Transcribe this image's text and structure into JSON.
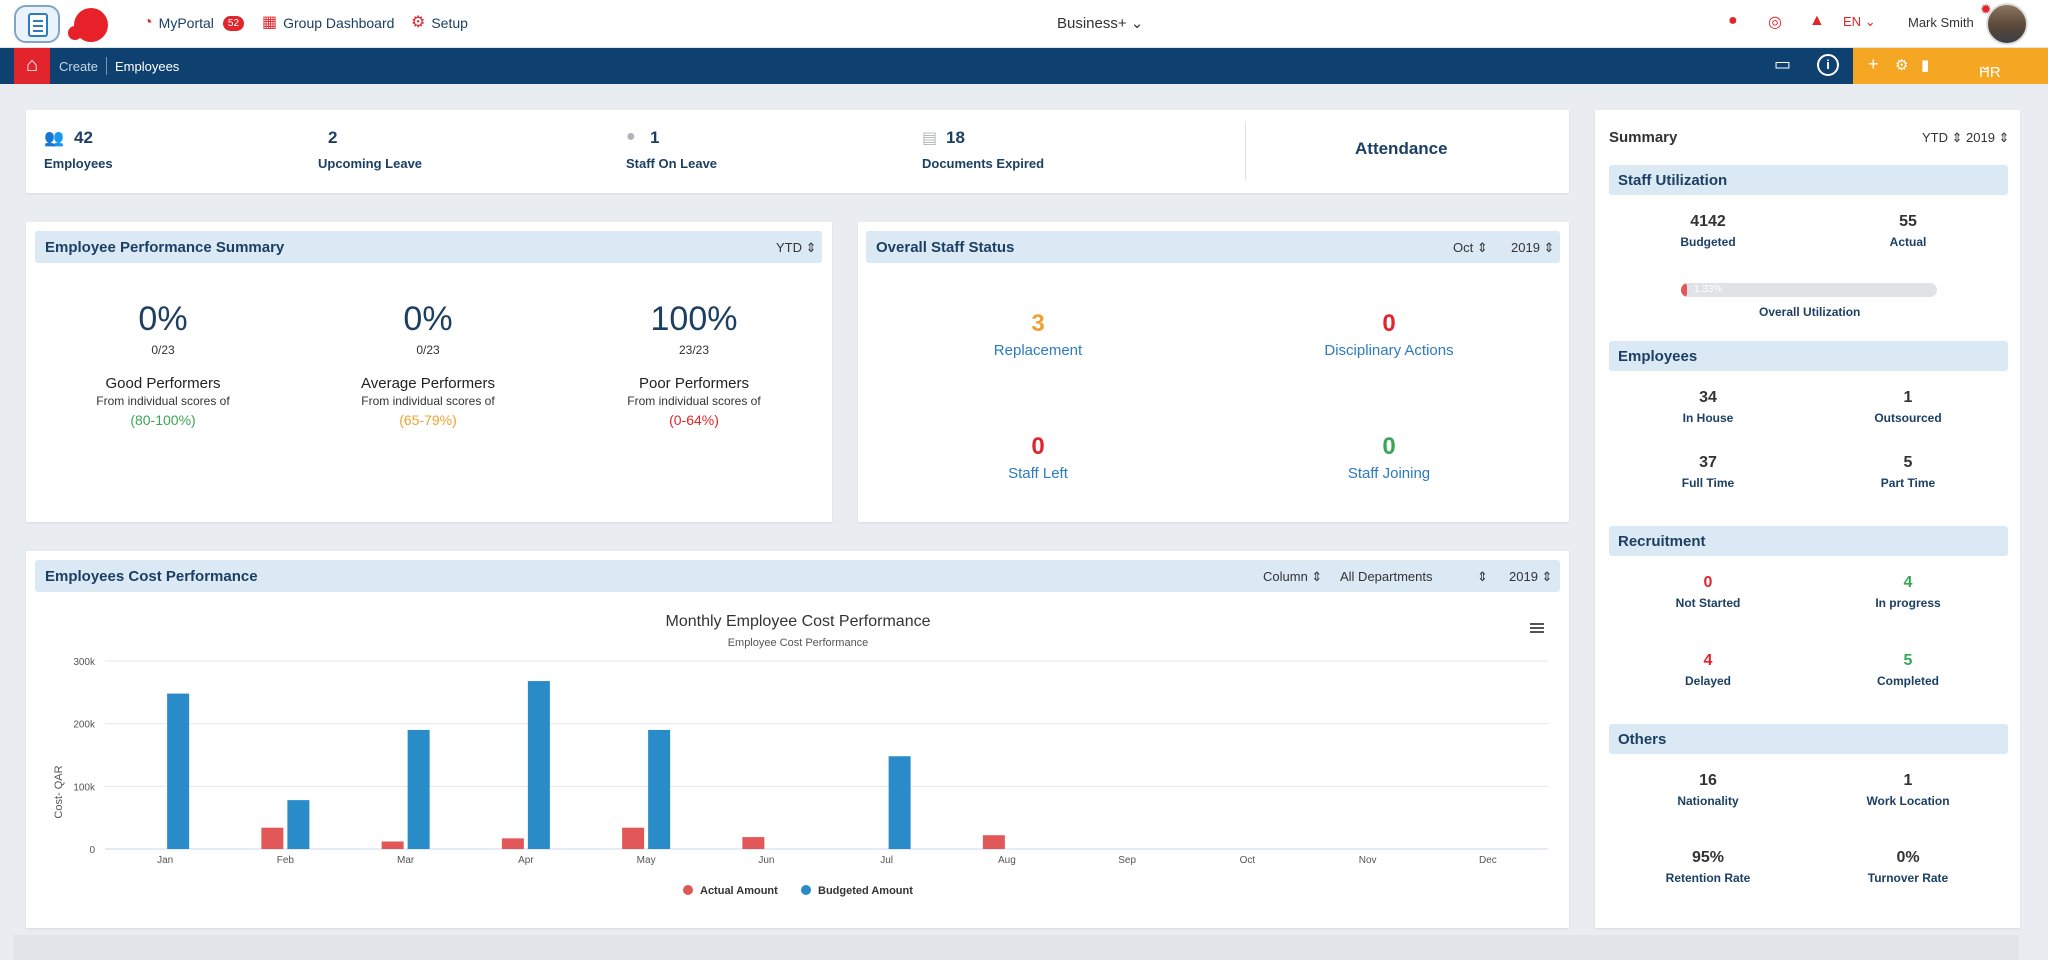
{
  "topbar": {
    "nav": [
      {
        "label": "MyPortal",
        "badge": "52",
        "icon": "dashboard-gauge-icon"
      },
      {
        "label": "Group Dashboard",
        "icon": "grid-icon"
      },
      {
        "label": "Setup",
        "icon": "gears-icon"
      }
    ],
    "brand": "Business+",
    "language": "EN",
    "user_name": "Mark Smith"
  },
  "breadcrumb": {
    "create": "Create",
    "current": "Employees"
  },
  "module": "HR",
  "kpis": [
    {
      "value": "42",
      "label": "Employees",
      "icon": "users-icon"
    },
    {
      "value": "2",
      "label": "Upcoming Leave",
      "icon": "calendar-icon"
    },
    {
      "value": "1",
      "label": "Staff On Leave",
      "icon": "user-icon"
    },
    {
      "value": "18",
      "label": "Documents Expired",
      "icon": "document-icon"
    }
  ],
  "attendance": "Attendance",
  "performance": {
    "title": "Employee Performance Summary",
    "period": "YTD",
    "items": [
      {
        "pct": "0%",
        "frac": "0/23",
        "name": "Good Performers",
        "from": "From individual scores of",
        "range": "(80-100%)",
        "color": "#3aa655"
      },
      {
        "pct": "0%",
        "frac": "0/23",
        "name": "Average Performers",
        "from": "From individual scores of",
        "range": "(65-79%)",
        "color": "#f0a030"
      },
      {
        "pct": "100%",
        "frac": "23/23",
        "name": "Poor Performers",
        "from": "From individual scores of",
        "range": "(0-64%)",
        "color": "#e2242c"
      }
    ]
  },
  "staff_status": {
    "title": "Overall Staff Status",
    "month": "Oct",
    "year": "2019",
    "items": [
      {
        "value": "3",
        "label": "Replacement",
        "color": "#f0a030"
      },
      {
        "value": "0",
        "label": "Disciplinary Actions",
        "color": "#e2242c"
      },
      {
        "value": "0",
        "label": "Staff Left",
        "color": "#e2242c"
      },
      {
        "value": "0",
        "label": "Staff Joining",
        "color": "#3aa655"
      }
    ]
  },
  "cost": {
    "title": "Employees Cost Performance",
    "chart_type_select": "Column",
    "department_select": "All Departments",
    "year_select": "2019"
  },
  "chart_data": {
    "type": "bar",
    "title": "Monthly Employee Cost Performance",
    "subtitle": "Employee Cost Performance",
    "xlabel": "",
    "ylabel": "Cost- QAR",
    "ylim": [
      0,
      300000
    ],
    "yticks": [
      "0",
      "100k",
      "200k",
      "300k"
    ],
    "categories": [
      "Jan",
      "Feb",
      "Mar",
      "Apr",
      "May",
      "Jun",
      "Jul",
      "Aug",
      "Sep",
      "Oct",
      "Nov",
      "Dec"
    ],
    "series": [
      {
        "name": "Actual Amount",
        "color": "#e25757",
        "values": [
          0,
          34000,
          12000,
          17000,
          34000,
          19000,
          0,
          22000,
          0,
          0,
          0,
          0
        ]
      },
      {
        "name": "Budgeted Amount",
        "color": "#2a8bc9",
        "values": [
          248000,
          78000,
          190000,
          268000,
          190000,
          0,
          148000,
          0,
          0,
          0,
          0,
          0
        ]
      }
    ],
    "grid": true,
    "legend": "bottom-center"
  },
  "summary": {
    "title": "Summary",
    "period": "YTD",
    "year": "2019",
    "staff_utilization": {
      "title": "Staff Utilization",
      "budgeted": "4142",
      "budgeted_label": "Budgeted",
      "actual": "55",
      "actual_label": "Actual",
      "progress_text": "1.33%",
      "progress_fraction": 0.0133,
      "overall_label": "Overall Utilization"
    },
    "employees": {
      "title": "Employees",
      "items": [
        {
          "value": "34",
          "label": "In House"
        },
        {
          "value": "1",
          "label": "Outsourced"
        },
        {
          "value": "37",
          "label": "Full Time"
        },
        {
          "value": "5",
          "label": "Part Time"
        }
      ]
    },
    "recruitment": {
      "title": "Recruitment",
      "items": [
        {
          "value": "0",
          "label": "Not Started",
          "color": "#e2242c"
        },
        {
          "value": "4",
          "label": "In progress",
          "color": "#3aa655"
        },
        {
          "value": "4",
          "label": "Delayed",
          "color": "#e2242c"
        },
        {
          "value": "5",
          "label": "Completed",
          "color": "#3aa655"
        }
      ]
    },
    "others": {
      "title": "Others",
      "items": [
        {
          "value": "16",
          "label": "Nationality"
        },
        {
          "value": "1",
          "label": "Work Location"
        },
        {
          "value": "95%",
          "label": "Retention Rate"
        },
        {
          "value": "0%",
          "label": "Turnover Rate"
        }
      ]
    }
  }
}
